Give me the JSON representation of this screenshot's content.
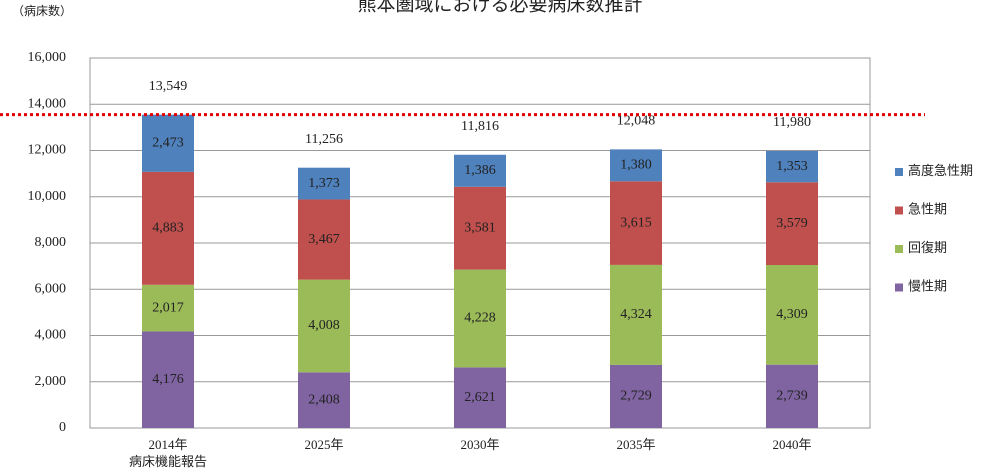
{
  "chart_data": {
    "type": "stacked_bar",
    "title": "熊本圏域における必要病床数推計",
    "y_axis_label": "（病床数）",
    "categories": [
      "2014年\n病床機能報告",
      "2025年",
      "2030年",
      "2035年",
      "2040年"
    ],
    "series": [
      {
        "name": "高度急性期",
        "color": "#4f81bd",
        "values": [
          2473,
          1373,
          1386,
          1380,
          1353
        ],
        "value_labels": [
          "2,473",
          "1,373",
          "1,386",
          "1,380",
          "1,353"
        ]
      },
      {
        "name": "急性期",
        "color": "#c0504d",
        "values": [
          4883,
          3467,
          3581,
          3615,
          3579
        ],
        "value_labels": [
          "4,883",
          "3,467",
          "3,581",
          "3,615",
          "3,579"
        ]
      },
      {
        "name": "回復期",
        "color": "#9bbb59",
        "values": [
          2017,
          4008,
          4228,
          4324,
          4309
        ],
        "value_labels": [
          "2,017",
          "4,008",
          "4,228",
          "4,324",
          "4,309"
        ]
      },
      {
        "name": "慢性期",
        "color": "#8064a2",
        "values": [
          4176,
          2408,
          2621,
          2729,
          2739
        ],
        "value_labels": [
          "4,176",
          "2,408",
          "2,621",
          "2,729",
          "2,739"
        ]
      }
    ],
    "totals": {
      "values": [
        13549,
        11256,
        11816,
        12048,
        11980
      ],
      "value_labels": [
        "13,549",
        "11,256",
        "11,816",
        "12,048",
        "11,980"
      ]
    },
    "reference_line": {
      "value": 13549,
      "color": "#e00000"
    },
    "ylim": [
      0,
      16000
    ],
    "yticks": [
      0,
      {
        "value": 2000,
        "label": "2,000"
      },
      {
        "value": 4000,
        "label": "4,000"
      },
      {
        "value": 6000,
        "label": "6,000"
      },
      {
        "value": 8000,
        "label": "8,000"
      },
      {
        "value": 10000,
        "label": "10,000"
      },
      {
        "value": 12000,
        "label": "12,000"
      },
      {
        "value": 14000,
        "label": "14,000"
      },
      {
        "value": 16000,
        "label": "16,000"
      }
    ],
    "grid": true,
    "legend": "right"
  }
}
